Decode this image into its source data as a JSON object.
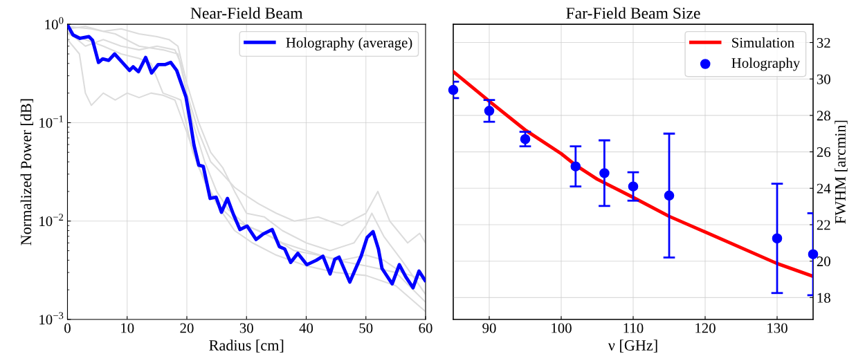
{
  "chart_data": [
    {
      "type": "line",
      "title": "Near-Field Beam",
      "xlabel": "Radius [cm]",
      "ylabel": "Normalized Power [dB]",
      "log": "y",
      "xlim": [
        0,
        60
      ],
      "xticks": [
        0,
        10,
        20,
        30,
        40,
        50,
        60
      ],
      "ylim": [
        0.001,
        1
      ],
      "yticks": [
        {
          "value": 0.001,
          "label": "10$^{−3}$"
        },
        {
          "value": 0.01,
          "label": "10$^{−2}$"
        },
        {
          "value": 0.1,
          "label": "10$^{−1}$"
        },
        {
          "value": 1,
          "label": "10$^{0}$"
        }
      ],
      "grid": true,
      "legend": "top right",
      "series": [
        {
          "color": "#dcdcdc",
          "x": [
            0,
            3,
            6,
            9,
            12,
            15,
            17,
            18.5,
            20,
            22,
            24,
            26,
            28,
            30,
            33,
            36,
            40,
            44,
            48,
            50,
            51,
            53,
            56,
            60
          ],
          "values": [
            0.9,
            0.95,
            0.85,
            0.9,
            0.8,
            0.75,
            0.7,
            0.6,
            0.25,
            0.1,
            0.05,
            0.035,
            0.02,
            0.012,
            0.011,
            0.008,
            0.006,
            0.005,
            0.006,
            0.009,
            0.012,
            0.007,
            0.004,
            0.0018
          ]
        },
        {
          "color": "#dcdcdc",
          "x": [
            0,
            2,
            3,
            4,
            6,
            8,
            10,
            12,
            14,
            16,
            18,
            20,
            22,
            24,
            26,
            28,
            31,
            35,
            40,
            45,
            50,
            55,
            60
          ],
          "values": [
            0.7,
            0.5,
            0.2,
            0.15,
            0.2,
            0.17,
            0.2,
            0.18,
            0.2,
            0.19,
            0.17,
            0.08,
            0.035,
            0.02,
            0.012,
            0.008,
            0.006,
            0.0045,
            0.0035,
            0.003,
            0.0028,
            0.0022,
            0.0012
          ]
        },
        {
          "color": "#dcdcdc",
          "x": [
            0,
            3,
            6,
            9,
            12,
            14,
            16,
            18,
            19,
            21,
            23,
            25,
            28,
            32,
            36,
            40,
            45,
            50,
            55,
            60
          ],
          "values": [
            0.8,
            0.7,
            0.6,
            0.5,
            0.45,
            0.4,
            0.2,
            0.18,
            0.17,
            0.05,
            0.025,
            0.015,
            0.01,
            0.008,
            0.006,
            0.005,
            0.004,
            0.0035,
            0.003,
            0.0015
          ]
        },
        {
          "color": "#dcdcdc",
          "x": [
            0,
            4,
            8,
            12,
            16,
            18.5,
            20,
            22,
            24,
            26,
            28,
            30,
            32,
            35,
            38,
            42,
            46,
            50,
            52,
            54,
            57,
            59,
            60
          ],
          "values": [
            0.95,
            0.9,
            0.8,
            0.6,
            0.55,
            0.5,
            0.2,
            0.08,
            0.04,
            0.03,
            0.022,
            0.018,
            0.015,
            0.012,
            0.01,
            0.011,
            0.009,
            0.012,
            0.02,
            0.01,
            0.006,
            0.0075,
            0.006
          ]
        },
        {
          "color": "#dcdcdc",
          "x": [
            0,
            3,
            6,
            9,
            12,
            15,
            18,
            19,
            21,
            23,
            25,
            27,
            30,
            34,
            38,
            42,
            46,
            50,
            53,
            56,
            60
          ],
          "values": [
            0.85,
            0.6,
            0.7,
            0.6,
            0.55,
            0.6,
            0.55,
            0.4,
            0.1,
            0.04,
            0.02,
            0.013,
            0.009,
            0.007,
            0.005,
            0.0045,
            0.004,
            0.0045,
            0.004,
            0.003,
            0.0025
          ]
        },
        {
          "name": "Holography (average)",
          "color": "#0000ff",
          "x": [
            0.15,
            0.93,
            2.1,
            3.6,
            4.2,
            5.2,
            5.9,
            6.9,
            7.9,
            9.2,
            10.4,
            11,
            11.9,
            13.1,
            14.1,
            15.2,
            16.4,
            17.3,
            18.3,
            19.85,
            20.6,
            21.2,
            22.0,
            22.75,
            23.9,
            24.9,
            25.8,
            26.8,
            27.8,
            28.9,
            30.1,
            31.6,
            32.8,
            34.3,
            35.5,
            36.4,
            37.4,
            38.6,
            40.1,
            41.7,
            42.8,
            44.0,
            44.8,
            45.5,
            47.3,
            49.2,
            50.2,
            51.2,
            52.1,
            52.7,
            54.4,
            55.6,
            56.7,
            57.9,
            58.9,
            59.9
          ],
          "values": [
            0.95,
            0.78,
            0.72,
            0.75,
            0.69,
            0.41,
            0.445,
            0.43,
            0.5,
            0.41,
            0.34,
            0.37,
            0.33,
            0.46,
            0.32,
            0.39,
            0.39,
            0.41,
            0.34,
            0.183,
            0.1,
            0.059,
            0.037,
            0.036,
            0.017,
            0.0175,
            0.0123,
            0.017,
            0.0117,
            0.0082,
            0.0089,
            0.0065,
            0.0074,
            0.0082,
            0.0055,
            0.0052,
            0.0038,
            0.0047,
            0.0036,
            0.004,
            0.0044,
            0.0029,
            0.0041,
            0.0043,
            0.0024,
            0.0044,
            0.0068,
            0.0078,
            0.0052,
            0.0033,
            0.0023,
            0.0036,
            0.0027,
            0.0021,
            0.0031,
            0.0025
          ]
        }
      ]
    },
    {
      "type": "line",
      "title": "Far-Field Beam Size",
      "xlabel": "ν [GHz]",
      "y2label": "FWHM [arcmin]",
      "xlim": [
        85,
        135
      ],
      "xticks": [
        90,
        100,
        110,
        120,
        130
      ],
      "y2lim": [
        16.8,
        33
      ],
      "y2ticks": [
        18,
        20,
        22,
        24,
        26,
        28,
        30,
        32
      ],
      "grid": true,
      "legend": "top right",
      "series": [
        {
          "name": "Simulation",
          "color": "#ff0000",
          "axis": "y2",
          "x": [
            85,
            90,
            95,
            100,
            102,
            105,
            110,
            115,
            120,
            130,
            135
          ],
          "values": [
            30.4,
            28.78,
            27.2,
            25.9,
            25.27,
            24.5,
            23.5,
            22.46,
            21.6,
            19.87,
            19.17
          ]
        },
        {
          "name": "Holography",
          "type": "scatter",
          "marker": "circle",
          "color": "#0000ff",
          "axis": "y2",
          "x": [
            85,
            90,
            95,
            102,
            106,
            110,
            115,
            130,
            135
          ],
          "values": [
            29.4,
            28.25,
            26.7,
            25.2,
            24.83,
            24.1,
            23.6,
            21.25,
            20.38
          ],
          "errors": [
            0.45,
            0.6,
            0.4,
            1.1,
            1.8,
            0.78,
            3.4,
            3.0,
            2.25
          ]
        }
      ]
    }
  ]
}
